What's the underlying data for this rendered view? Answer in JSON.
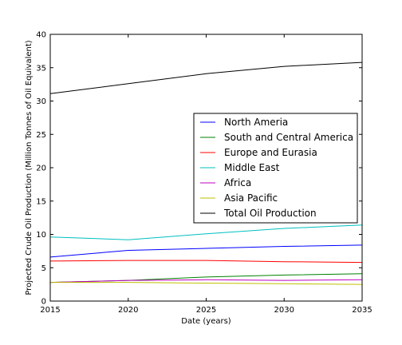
{
  "chart_data": {
    "type": "line",
    "title": "",
    "xlabel": "Date (years)",
    "ylabel": "Projected Crude Oil Production (Million Tonnes of Oil Equivalent)",
    "x": [
      2015,
      2020,
      2025,
      2030,
      2035
    ],
    "xlim": [
      2015,
      2035
    ],
    "ylim": [
      0,
      40
    ],
    "xticks": [
      "2015",
      "2020",
      "2025",
      "2030",
      "2035"
    ],
    "yticks": [
      "0",
      "5",
      "10",
      "15",
      "20",
      "25",
      "30",
      "35",
      "40"
    ],
    "grid": false,
    "legend_position": "center-right",
    "series": [
      {
        "name": "North Ameria",
        "color": "#0000ff",
        "values": [
          6.6,
          7.6,
          7.9,
          8.2,
          8.4
        ]
      },
      {
        "name": "South and Central America",
        "color": "#008000",
        "values": [
          2.8,
          3.1,
          3.6,
          3.9,
          4.1
        ]
      },
      {
        "name": "Europe and Eurasia",
        "color": "#ff0000",
        "values": [
          6.0,
          6.1,
          6.1,
          5.9,
          5.8
        ]
      },
      {
        "name": "Middle East",
        "color": "#00bfbf",
        "values": [
          9.6,
          9.2,
          10.1,
          10.9,
          11.4
        ]
      },
      {
        "name": "Africa",
        "color": "#bf00bf",
        "values": [
          2.8,
          3.1,
          3.2,
          3.1,
          3.2
        ]
      },
      {
        "name": "Asia Pacific",
        "color": "#bfbf00",
        "values": [
          2.8,
          2.8,
          2.7,
          2.6,
          2.5
        ]
      },
      {
        "name": "Total Oil Production",
        "color": "#000000",
        "values": [
          31.1,
          32.6,
          34.1,
          35.2,
          35.8
        ]
      }
    ]
  }
}
